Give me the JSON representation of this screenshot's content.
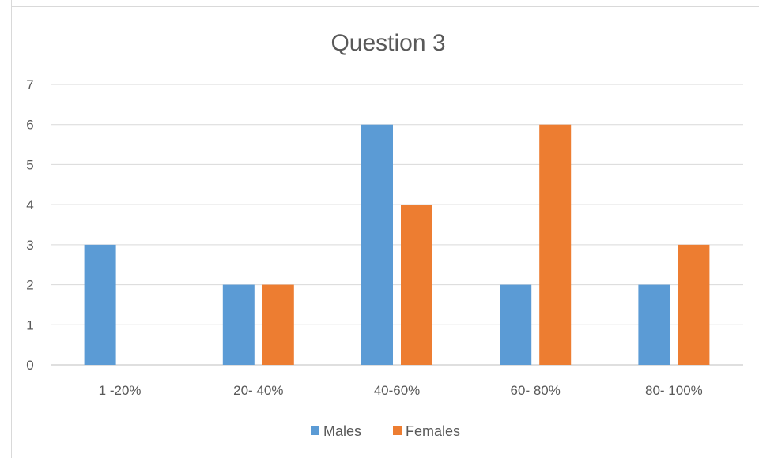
{
  "chart_data": {
    "type": "bar",
    "title": "Question 3",
    "xlabel": "",
    "ylabel": "",
    "categories": [
      "1 -20%",
      "20- 40%",
      "40-60%",
      "60- 80%",
      "80- 100%"
    ],
    "series": [
      {
        "name": "Males",
        "values": [
          3,
          2,
          6,
          2,
          2
        ],
        "color": "#5b9bd5"
      },
      {
        "name": "Females",
        "values": [
          0,
          2,
          4,
          6,
          3
        ],
        "color": "#ed7d31"
      }
    ],
    "ylim": [
      0,
      7
    ],
    "yticks": [
      "0",
      "1",
      "2",
      "3",
      "4",
      "5",
      "6",
      "7"
    ],
    "grid": true,
    "legend_position": "bottom"
  }
}
